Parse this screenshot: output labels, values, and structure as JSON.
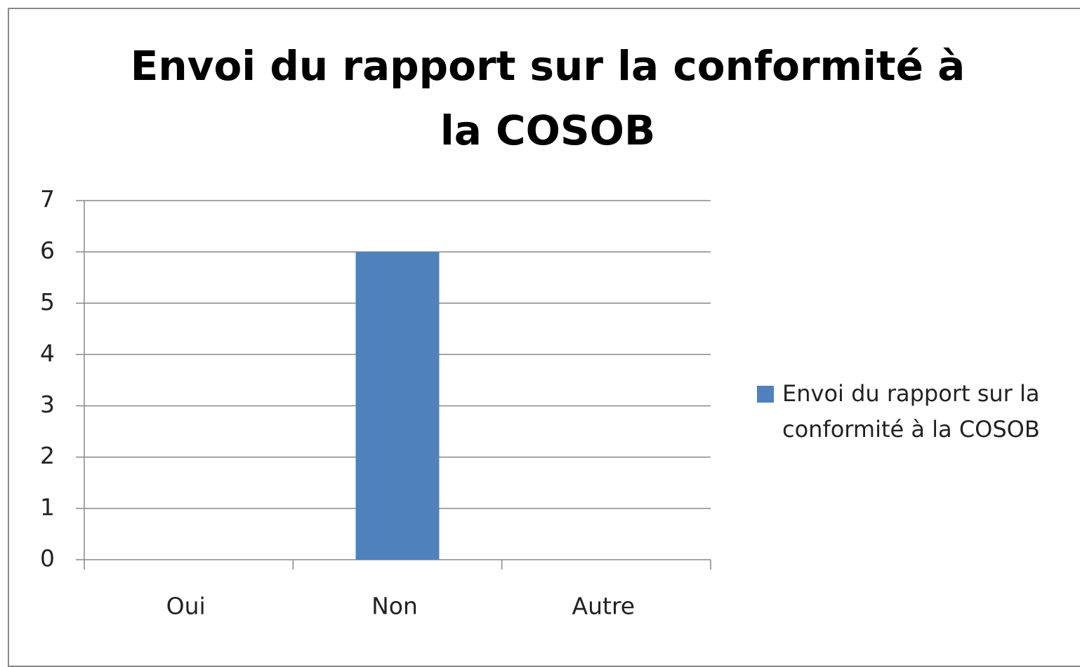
{
  "chart_data": {
    "type": "bar",
    "title": "Envoi du rapport sur la conformité à la COSOB",
    "categories": [
      "Oui",
      "Non",
      "Autre"
    ],
    "series": [
      {
        "name": "Envoi du rapport sur la conformité à la COSOB",
        "color": "#4f81bd",
        "values": [
          0,
          6,
          0
        ]
      }
    ],
    "ylim": [
      0,
      7
    ],
    "yticks": [
      0,
      1,
      2,
      3,
      4,
      5,
      6,
      7
    ],
    "grid": true,
    "legend": "right"
  }
}
